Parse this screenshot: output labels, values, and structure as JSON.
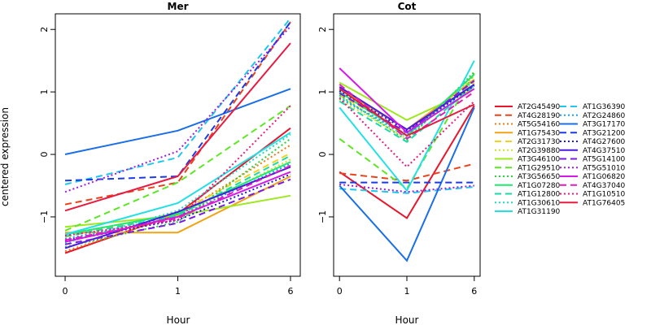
{
  "chart_data": {
    "type": "line",
    "ylabel": "centered expression",
    "xlabel": "Hour",
    "x_categories": [
      "0",
      "1",
      "6"
    ],
    "y_ticks": [
      -1,
      0,
      1,
      2
    ],
    "ylim": [
      -1.95,
      2.25
    ],
    "grid": false,
    "legend_position": "right",
    "panels": [
      {
        "title": "Mer",
        "series": [
          {
            "name": "AT2G45490",
            "color": "#e8162c",
            "dash": "solid",
            "values": [
              -1.58,
              -0.95,
              0.42
            ]
          },
          {
            "name": "AT4G28190",
            "color": "#e8441c",
            "dash": "dashed",
            "values": [
              -0.8,
              -0.45,
              2.12
            ]
          },
          {
            "name": "AT5G54160",
            "color": "#ee7a12",
            "dash": "dotted",
            "values": [
              -1.55,
              -0.97,
              0.15
            ]
          },
          {
            "name": "AT1G75430",
            "color": "#f0a314",
            "dash": "solid",
            "values": [
              -1.25,
              -1.25,
              -0.35
            ]
          },
          {
            "name": "AT2G31730",
            "color": "#f2d21a",
            "dash": "dashed",
            "values": [
              -1.32,
              -0.93,
              0.02
            ]
          },
          {
            "name": "AT2G39880",
            "color": "#cfe21a",
            "dash": "dotted",
            "values": [
              -1.38,
              -1.0,
              -0.08
            ]
          },
          {
            "name": "AT3G46100",
            "color": "#9de81e",
            "dash": "solid",
            "values": [
              -1.16,
              -0.98,
              -0.66
            ]
          },
          {
            "name": "AT1G29510",
            "color": "#5ee624",
            "dash": "dashed",
            "values": [
              -1.22,
              -0.45,
              0.78
            ]
          },
          {
            "name": "AT3G56650",
            "color": "#26d43a",
            "dash": "dotted",
            "values": [
              -1.48,
              -1.08,
              0.25
            ]
          },
          {
            "name": "AT1G07280",
            "color": "#1ee870",
            "dash": "solid",
            "values": [
              -1.28,
              -0.95,
              -0.12
            ]
          },
          {
            "name": "AT1G12800",
            "color": "#1ad9a8",
            "dash": "dashed",
            "values": [
              -1.31,
              -0.98,
              -0.02
            ]
          },
          {
            "name": "AT1G30610",
            "color": "#18dcc4",
            "dash": "dotted",
            "values": [
              -1.42,
              -0.9,
              0.32
            ]
          },
          {
            "name": "AT1G31190",
            "color": "#22e0e4",
            "dash": "solid",
            "values": [
              -1.28,
              -0.78,
              0.35
            ]
          },
          {
            "name": "AT1G36390",
            "color": "#1cc8ec",
            "dash": "dashed",
            "values": [
              -0.48,
              -0.05,
              2.18
            ]
          },
          {
            "name": "AT2G24860",
            "color": "#1a9ef0",
            "dash": "dotted",
            "values": [
              -1.35,
              -1.0,
              -0.15
            ]
          },
          {
            "name": "AT3G17170",
            "color": "#1a6ee8",
            "dash": "solid",
            "values": [
              0.0,
              0.38,
              1.05
            ]
          },
          {
            "name": "AT3G21200",
            "color": "#1a3ae6",
            "dash": "dashed",
            "values": [
              -0.42,
              -0.35,
              2.12
            ]
          },
          {
            "name": "AT4G27600",
            "color": "#1a1ad0",
            "dash": "dotted",
            "values": [
              -1.38,
              -1.05,
              -0.32
            ]
          },
          {
            "name": "AT4G37510",
            "color": "#4a1ae0",
            "dash": "solid",
            "values": [
              -1.5,
              -0.92,
              -0.2
            ]
          },
          {
            "name": "AT5G14100",
            "color": "#7a1ae6",
            "dash": "dashed",
            "values": [
              -1.44,
              -1.1,
              -0.4
            ]
          },
          {
            "name": "AT5G51010",
            "color": "#a01ae0",
            "dash": "dotted",
            "values": [
              -0.6,
              0.05,
              2.05
            ]
          },
          {
            "name": "AT1G06820",
            "color": "#d41ae6",
            "dash": "solid",
            "values": [
              -1.4,
              -1.0,
              -0.28
            ]
          },
          {
            "name": "AT4G37040",
            "color": "#e41abc",
            "dash": "dashed",
            "values": [
              -1.37,
              -1.02,
              -0.18
            ]
          },
          {
            "name": "AT1G10510",
            "color": "#e81a82",
            "dash": "dotted",
            "values": [
              -1.3,
              -1.05,
              0.78
            ]
          },
          {
            "name": "AT1G76405",
            "color": "#e81a40",
            "dash": "solid",
            "values": [
              -0.9,
              -0.35,
              1.78
            ]
          }
        ]
      },
      {
        "title": "Cot",
        "series": [
          {
            "name": "AT2G45490",
            "color": "#e8162c",
            "dash": "solid",
            "values": [
              -0.28,
              -1.02,
              0.78
            ]
          },
          {
            "name": "AT4G28190",
            "color": "#e8441c",
            "dash": "dashed",
            "values": [
              -0.3,
              -0.42,
              -0.15
            ]
          },
          {
            "name": "AT5G54160",
            "color": "#ee7a12",
            "dash": "dotted",
            "values": [
              1.02,
              0.3,
              1.28
            ]
          },
          {
            "name": "AT1G75430",
            "color": "#f0a314",
            "dash": "solid",
            "values": [
              1.05,
              0.4,
              1.2
            ]
          },
          {
            "name": "AT2G31730",
            "color": "#f2d21a",
            "dash": "dashed",
            "values": [
              0.95,
              0.35,
              1.15
            ]
          },
          {
            "name": "AT2G39880",
            "color": "#cfe21a",
            "dash": "dotted",
            "values": [
              0.88,
              0.25,
              1.25
            ]
          },
          {
            "name": "AT3G46100",
            "color": "#9de81e",
            "dash": "solid",
            "values": [
              1.15,
              0.55,
              1.05
            ]
          },
          {
            "name": "AT1G29510",
            "color": "#5ee624",
            "dash": "dashed",
            "values": [
              0.25,
              -0.55,
              1.3
            ]
          },
          {
            "name": "AT3G56650",
            "color": "#26d43a",
            "dash": "dotted",
            "values": [
              0.95,
              0.22,
              1.32
            ]
          },
          {
            "name": "AT1G07280",
            "color": "#1ee870",
            "dash": "solid",
            "values": [
              1.0,
              0.3,
              1.28
            ]
          },
          {
            "name": "AT1G12800",
            "color": "#1ad9a8",
            "dash": "dashed",
            "values": [
              0.85,
              0.2,
              1.1
            ]
          },
          {
            "name": "AT1G30610",
            "color": "#18dcc4",
            "dash": "dotted",
            "values": [
              0.92,
              0.28,
              1.18
            ]
          },
          {
            "name": "AT1G31190",
            "color": "#22e0e4",
            "dash": "solid",
            "values": [
              0.75,
              -0.58,
              1.5
            ]
          },
          {
            "name": "AT1G36390",
            "color": "#1cc8ec",
            "dash": "dashed",
            "values": [
              -0.55,
              -0.62,
              -0.52
            ]
          },
          {
            "name": "AT2G24860",
            "color": "#1a9ef0",
            "dash": "dotted",
            "values": [
              0.9,
              0.32,
              1.12
            ]
          },
          {
            "name": "AT3G17170",
            "color": "#1a6ee8",
            "dash": "solid",
            "values": [
              -0.5,
              -1.7,
              0.75
            ]
          },
          {
            "name": "AT3G21200",
            "color": "#1a3ae6",
            "dash": "dashed",
            "values": [
              -0.45,
              -0.45,
              -0.45
            ]
          },
          {
            "name": "AT4G27600",
            "color": "#1a1ad0",
            "dash": "dotted",
            "values": [
              1.02,
              0.38,
              1.1
            ]
          },
          {
            "name": "AT4G37510",
            "color": "#4a1ae0",
            "dash": "solid",
            "values": [
              1.08,
              0.4,
              1.12
            ]
          },
          {
            "name": "AT5G14100",
            "color": "#7a1ae6",
            "dash": "dashed",
            "values": [
              0.98,
              0.35,
              1.18
            ]
          },
          {
            "name": "AT5G51010",
            "color": "#a01ae0",
            "dash": "dotted",
            "values": [
              -0.48,
              -0.6,
              -0.5
            ]
          },
          {
            "name": "AT1G06820",
            "color": "#d41ae6",
            "dash": "solid",
            "values": [
              1.38,
              0.35,
              1.05
            ]
          },
          {
            "name": "AT4G37040",
            "color": "#e41abc",
            "dash": "dashed",
            "values": [
              1.12,
              0.25,
              1.0
            ]
          },
          {
            "name": "AT1G10510",
            "color": "#e81a82",
            "dash": "dotted",
            "values": [
              0.9,
              -0.2,
              0.85
            ]
          },
          {
            "name": "AT1G76405",
            "color": "#e81a40",
            "dash": "solid",
            "values": [
              1.05,
              0.3,
              0.8
            ]
          }
        ]
      }
    ]
  }
}
